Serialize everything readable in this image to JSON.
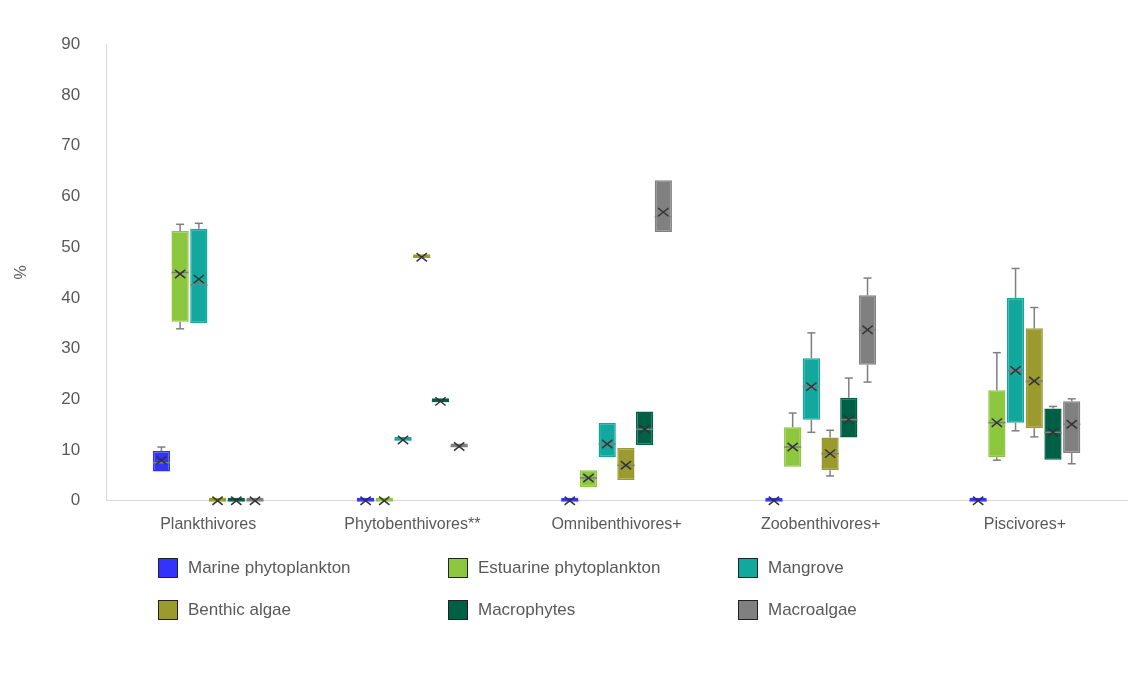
{
  "chart_data": {
    "type": "box",
    "ylabel": "%",
    "categories": [
      "Plankthivores",
      "Phytobenthivores**",
      "Omnibenthivores+",
      "Zoobenthivores+",
      "Piscivores+"
    ],
    "ylim": [
      0,
      90
    ],
    "yticks": [
      0,
      10,
      20,
      30,
      40,
      50,
      60,
      70,
      80,
      90
    ],
    "legend": "bottom",
    "series": [
      {
        "name": "Marine phytoplankton",
        "color": "#3333ff",
        "boxes": [
          {
            "low": 5.8,
            "q1": 5.8,
            "median": 7.5,
            "q3": 9.8,
            "high": 10.6,
            "mean": 8.0
          },
          {
            "low": 0,
            "q1": 0,
            "median": 0,
            "q3": 0,
            "high": 0,
            "mean": 0
          },
          {
            "low": 0,
            "q1": 0,
            "median": 0,
            "q3": 0,
            "high": 0,
            "mean": 0
          },
          {
            "low": 0,
            "q1": 0,
            "median": 0,
            "q3": 0,
            "high": 0,
            "mean": 0
          },
          {
            "low": 0,
            "q1": 0,
            "median": 0,
            "q3": 0,
            "high": 0,
            "mean": 0
          }
        ]
      },
      {
        "name": "Estuarine phytoplankton",
        "color": "#8dc63f",
        "boxes": [
          {
            "low": 33.9,
            "q1": 35.3,
            "median": 45,
            "q3": 53.2,
            "high": 54.5,
            "mean": 44.7
          },
          {
            "low": 0,
            "q1": 0,
            "median": 0,
            "q3": 0,
            "high": 0,
            "mean": 0
          },
          {
            "low": 2.7,
            "q1": 2.7,
            "median": 4.5,
            "q3": 6.0,
            "high": 6.0,
            "mean": 4.5
          },
          {
            "low": 6.7,
            "q1": 6.7,
            "median": 10.6,
            "q3": 14.5,
            "high": 17.3,
            "mean": 10.6
          },
          {
            "low": 8.0,
            "q1": 8.6,
            "median": 15.4,
            "q3": 21.8,
            "high": 29.2,
            "mean": 15.4
          }
        ]
      },
      {
        "name": "Mangrove",
        "color": "#13a89e",
        "boxes": [
          {
            "low": 35,
            "q1": 35,
            "median": 42.5,
            "q3": 53.6,
            "high": 54.7,
            "mean": 43.7
          },
          {
            "low": 12,
            "q1": 12,
            "median": 12,
            "q3": 12,
            "high": 12,
            "mean": 12
          },
          {
            "low": 8.6,
            "q1": 8.6,
            "median": 11.2,
            "q3": 15.4,
            "high": 15.4,
            "mean": 11.2
          },
          {
            "low": 13.5,
            "q1": 16,
            "median": 22.5,
            "q3": 28.1,
            "high": 33.1,
            "mean": 22.5
          },
          {
            "low": 13.8,
            "q1": 15.4,
            "median": 25.7,
            "q3": 40,
            "high": 45.8,
            "mean": 25.7
          }
        ]
      },
      {
        "name": "Benthic algae",
        "color": "#9a9a2e",
        "boxes": [
          {
            "low": 0,
            "q1": 0,
            "median": 0,
            "q3": 0,
            "high": 0,
            "mean": 0
          },
          {
            "low": 48,
            "q1": 48,
            "median": 48,
            "q3": 48,
            "high": 48,
            "mean": 48
          },
          {
            "low": 4.1,
            "q1": 4.1,
            "median": 7,
            "q3": 10.4,
            "high": 10.4,
            "mean": 7
          },
          {
            "low": 4.9,
            "q1": 6,
            "median": 9.3,
            "q3": 12.5,
            "high": 13.9,
            "mean": 9.3
          },
          {
            "low": 12.6,
            "q1": 14.3,
            "median": 23.6,
            "q3": 34,
            "high": 38.1,
            "mean": 23.6
          }
        ]
      },
      {
        "name": "Macrophytes",
        "color": "#006046",
        "boxes": [
          {
            "low": 0,
            "q1": 0,
            "median": 0,
            "q3": 0,
            "high": 0,
            "mean": 0
          },
          {
            "low": 19.6,
            "q1": 19.6,
            "median": 19.6,
            "q3": 19.6,
            "high": 19.6,
            "mean": 19.6
          },
          {
            "low": 11,
            "q1": 11,
            "median": 14.1,
            "q3": 17.6,
            "high": 17.6,
            "mean": 14.1
          },
          {
            "low": 12.5,
            "q1": 12.5,
            "median": 16,
            "q3": 20.3,
            "high": 24.2,
            "mean": 16
          },
          {
            "low": 8.1,
            "q1": 8.1,
            "median": 13.5,
            "q3": 18.2,
            "high": 18.6,
            "mean": 13.5
          }
        ]
      },
      {
        "name": "Macroalgae",
        "color": "#808080",
        "boxes": [
          {
            "low": 0,
            "q1": 0,
            "median": 0,
            "q3": 0,
            "high": 0,
            "mean": 0
          },
          {
            "low": 10.7,
            "q1": 10.7,
            "median": 10.7,
            "q3": 10.7,
            "high": 10.7,
            "mean": 10.7
          },
          {
            "low": 53,
            "q1": 53,
            "median": 56,
            "q3": 63.2,
            "high": 63.2,
            "mean": 56.9
          },
          {
            "low": 23.4,
            "q1": 26.8,
            "median": 33.7,
            "q3": 40.5,
            "high": 43.9,
            "mean": 33.7
          },
          {
            "low": 7.3,
            "q1": 9.4,
            "median": 15.1,
            "q3": 19.6,
            "high": 20.1,
            "mean": 15.1
          }
        ]
      }
    ]
  }
}
